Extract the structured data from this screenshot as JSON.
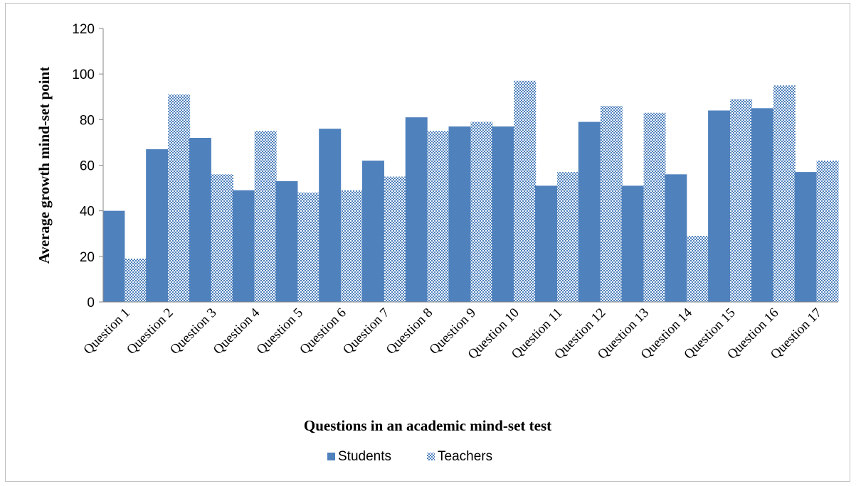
{
  "chart_data": {
    "type": "bar",
    "title": "",
    "xlabel": "Questions in an academic mind-set test",
    "ylabel": "Average growth mind-set point",
    "ylim": [
      0,
      120
    ],
    "yticks": [
      0,
      20,
      40,
      60,
      80,
      100,
      120
    ],
    "grid": false,
    "legend_position": "bottom",
    "categories": [
      "Question 1",
      "Question 2",
      "Question 3",
      "Question 4",
      "Question 5",
      "Question 6",
      "Question 7",
      "Question 8",
      "Question 9",
      "Question 10",
      "Question 11",
      "Question 12",
      "Question 13",
      "Question 14",
      "Question 15",
      "Question 16",
      "Question 17"
    ],
    "series": [
      {
        "name": "Students",
        "color": "#4f81bd",
        "pattern": "solid",
        "values": [
          40,
          67,
          72,
          49,
          53,
          76,
          62,
          81,
          77,
          77,
          51,
          79,
          51,
          56,
          84,
          85,
          57
        ]
      },
      {
        "name": "Teachers",
        "color": "#4f81bd",
        "pattern": "checker",
        "values": [
          19,
          91,
          56,
          75,
          48,
          49,
          55,
          75,
          79,
          97,
          57,
          86,
          83,
          29,
          89,
          95,
          62
        ]
      }
    ]
  }
}
